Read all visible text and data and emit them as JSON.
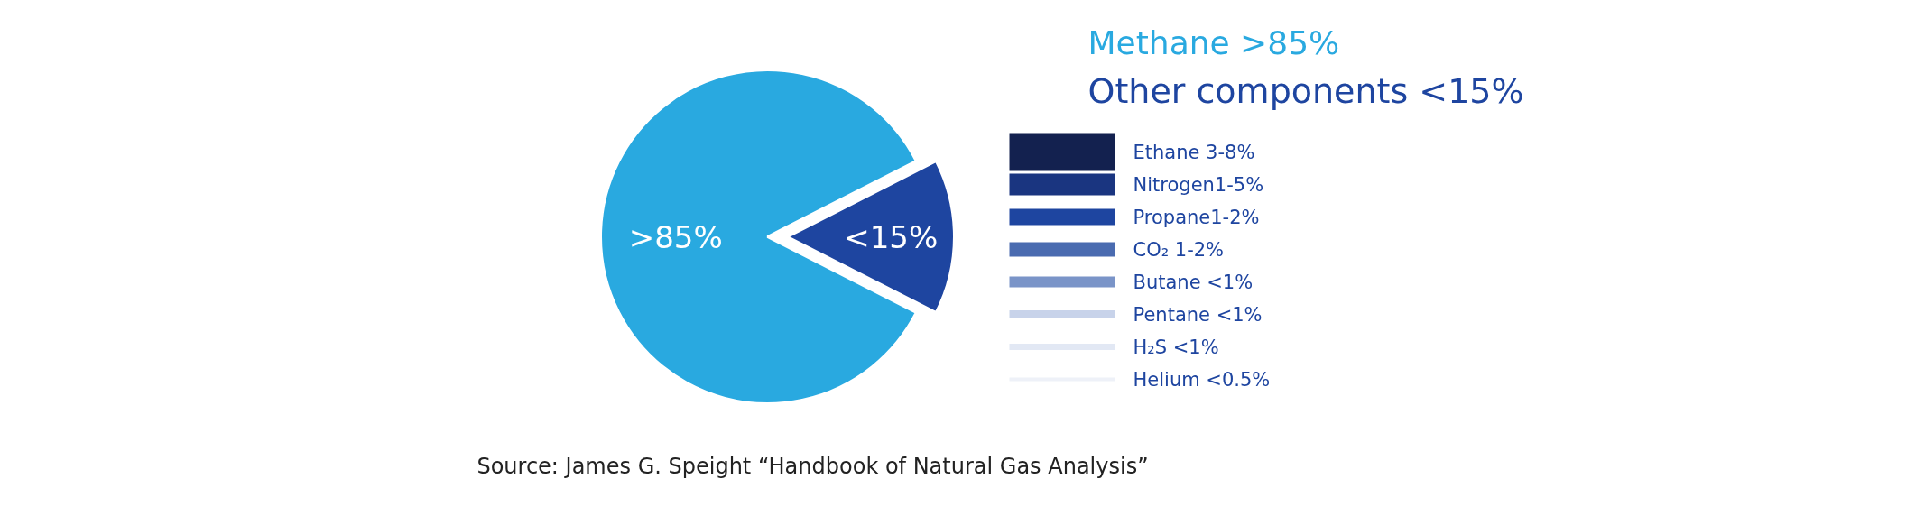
{
  "chart_data": [
    {
      "type": "pie",
      "title": "Methane >85%",
      "subtitle": "Other components <15%",
      "categories": [
        null,
        null
      ],
      "values": [
        85,
        15
      ],
      "colors": [
        "#29a9e0",
        "#1e45a0"
      ],
      "value_labels": [
        ">85%",
        "<15%"
      ],
      "annotations": [
        "Source: James G. Speight “Handbook of Natural Gas Analysis”"
      ]
    },
    {
      "type": "other",
      "categories": [
        "Ethane 3-8%",
        "Nitrogen1-5%",
        "Propane1-2%",
        "CO₂ 1-2%",
        "Butane <1%",
        "Pentane <1%",
        "H₂S <1%",
        "Helium <0.5%"
      ],
      "colors": [
        "#13214f",
        "#1a3580",
        "#1e45a0",
        "#4a6bb0",
        "#7a94c8",
        "#c8d3ea",
        "#e2e8f4",
        "#eef1f8"
      ]
    }
  ]
}
